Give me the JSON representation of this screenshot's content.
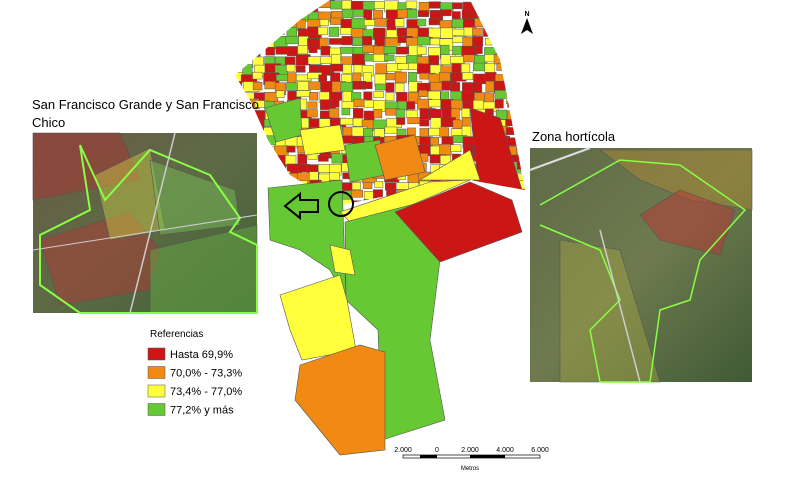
{
  "insets": [
    {
      "title": "San Francisco Grande y San Francisco Chico"
    },
    {
      "title": "Zona hortícola"
    }
  ],
  "legend": {
    "title": "Referencias",
    "items": [
      {
        "label": "Hasta 69,9%",
        "color": "#cc1616"
      },
      {
        "label": "70,0% - 73,3%",
        "color": "#f08a12"
      },
      {
        "label": "73,4% - 77,0%",
        "color": "#ffff3c"
      },
      {
        "label": "77,2% y más",
        "color": "#66c832"
      }
    ]
  },
  "scale_bar": {
    "ticks": [
      "2.000",
      "0",
      "2.000",
      "4.000",
      "6.000"
    ],
    "unit": "Metros"
  },
  "north_label": "N"
}
